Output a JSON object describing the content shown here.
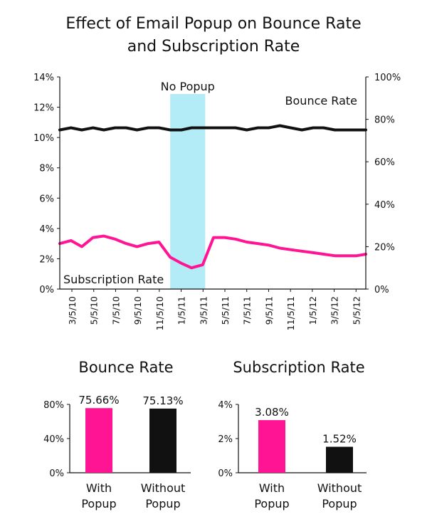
{
  "title": {
    "line1": "Effect of Email Popup on Bounce Rate",
    "line2": "and Subscription Rate"
  },
  "colors": {
    "bounce": "#111111",
    "subscription": "#ff1493",
    "no_popup_band": "#b3ebf7",
    "with_popup_bar": "#ff1493",
    "without_popup_bar": "#111111"
  },
  "chart_data": [
    {
      "type": "line",
      "title": "Effect of Email Popup on Bounce Rate and Subscription Rate",
      "x_tick_labels": [
        "3/5/10",
        "5/5/10",
        "7/5/10",
        "9/5/10",
        "11/5/10",
        "1/5/11",
        "3/5/11",
        "5/5/11",
        "7/5/11",
        "9/5/11",
        "11/5/11",
        "1/5/12",
        "3/5/12",
        "5/5/12"
      ],
      "x_range": [
        "2010-03-05",
        "2012-06-30"
      ],
      "y_left": {
        "ticks": [
          "0%",
          "2%",
          "4%",
          "6%",
          "8%",
          "10%",
          "12%",
          "14%"
        ],
        "range": [
          0,
          14
        ],
        "unit": "%"
      },
      "y_right": {
        "ticks": [
          "0%",
          "20%",
          "40%",
          "60%",
          "80%",
          "100%"
        ],
        "range": [
          0,
          100
        ],
        "unit": "%"
      },
      "annotations": {
        "no_popup_label": "No Popup",
        "no_popup_range": [
          "2011-01-05",
          "2011-04-12"
        ],
        "bounce_label": "Bounce Rate",
        "subscription_label": "Subscription Rate"
      },
      "series": [
        {
          "name": "Bounce Rate",
          "axis": "right",
          "points": [
            [
              "2010-03-05",
              75
            ],
            [
              "2010-04-05",
              76
            ],
            [
              "2010-05-05",
              75
            ],
            [
              "2010-06-05",
              76
            ],
            [
              "2010-07-05",
              75
            ],
            [
              "2010-08-05",
              76
            ],
            [
              "2010-09-05",
              76
            ],
            [
              "2010-10-05",
              75
            ],
            [
              "2010-11-05",
              76
            ],
            [
              "2010-12-05",
              76
            ],
            [
              "2011-01-05",
              75
            ],
            [
              "2011-02-05",
              75
            ],
            [
              "2011-03-05",
              76
            ],
            [
              "2011-04-05",
              76
            ],
            [
              "2011-05-05",
              76
            ],
            [
              "2011-06-05",
              76
            ],
            [
              "2011-07-05",
              76
            ],
            [
              "2011-08-05",
              75
            ],
            [
              "2011-09-05",
              76
            ],
            [
              "2011-10-05",
              76
            ],
            [
              "2011-11-05",
              77
            ],
            [
              "2011-12-05",
              76
            ],
            [
              "2012-01-05",
              75
            ],
            [
              "2012-02-05",
              76
            ],
            [
              "2012-03-05",
              76
            ],
            [
              "2012-04-05",
              75
            ],
            [
              "2012-05-05",
              75
            ],
            [
              "2012-06-05",
              75
            ],
            [
              "2012-06-30",
              75
            ]
          ]
        },
        {
          "name": "Subscription Rate",
          "axis": "left",
          "points": [
            [
              "2010-03-05",
              3.0
            ],
            [
              "2010-04-05",
              3.2
            ],
            [
              "2010-05-05",
              2.8
            ],
            [
              "2010-06-05",
              3.4
            ],
            [
              "2010-07-05",
              3.5
            ],
            [
              "2010-08-05",
              3.3
            ],
            [
              "2010-09-05",
              3.0
            ],
            [
              "2010-10-05",
              2.8
            ],
            [
              "2010-11-05",
              3.0
            ],
            [
              "2010-12-05",
              3.1
            ],
            [
              "2011-01-05",
              2.1
            ],
            [
              "2011-02-05",
              1.7
            ],
            [
              "2011-03-05",
              1.4
            ],
            [
              "2011-04-05",
              1.6
            ],
            [
              "2011-05-05",
              3.4
            ],
            [
              "2011-06-05",
              3.4
            ],
            [
              "2011-07-05",
              3.3
            ],
            [
              "2011-08-05",
              3.1
            ],
            [
              "2011-09-05",
              3.0
            ],
            [
              "2011-10-05",
              2.9
            ],
            [
              "2011-11-05",
              2.7
            ],
            [
              "2011-12-05",
              2.6
            ],
            [
              "2012-01-05",
              2.5
            ],
            [
              "2012-02-05",
              2.4
            ],
            [
              "2012-03-05",
              2.3
            ],
            [
              "2012-04-05",
              2.2
            ],
            [
              "2012-05-05",
              2.2
            ],
            [
              "2012-06-05",
              2.2
            ],
            [
              "2012-06-30",
              2.3
            ]
          ]
        }
      ]
    },
    {
      "type": "bar",
      "title": "Bounce Rate",
      "categories": [
        "With Popup",
        "Without Popup"
      ],
      "category_lines": [
        [
          "With",
          "Popup"
        ],
        [
          "Without",
          "Popup"
        ]
      ],
      "values": [
        75.66,
        75.13
      ],
      "value_labels": [
        "75.66%",
        "75.13%"
      ],
      "y_ticks": [
        "0%",
        "40%",
        "80%"
      ],
      "ylim": [
        0,
        80
      ]
    },
    {
      "type": "bar",
      "title": "Subscription Rate",
      "categories": [
        "With Popup",
        "Without Popup"
      ],
      "category_lines": [
        [
          "With",
          "Popup"
        ],
        [
          "Without",
          "Popup"
        ]
      ],
      "values": [
        3.08,
        1.52
      ],
      "value_labels": [
        "3.08%",
        "1.52%"
      ],
      "y_ticks": [
        "0%",
        "2%",
        "4%"
      ],
      "ylim": [
        0,
        4
      ]
    }
  ]
}
